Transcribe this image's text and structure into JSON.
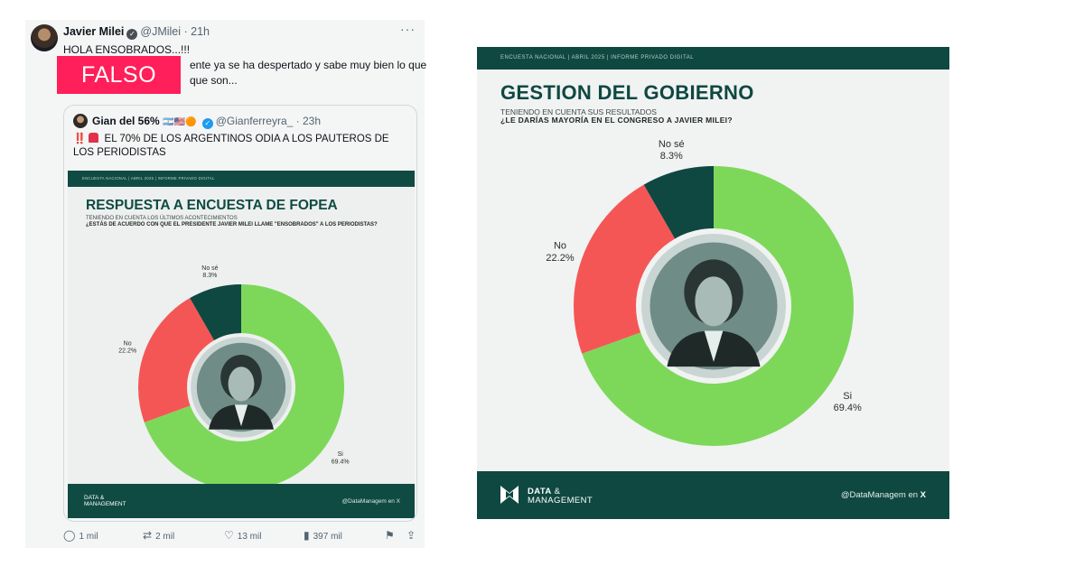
{
  "tweet": {
    "author_name": "Javier Milei",
    "author_handle": "@JMilei",
    "time": "21h",
    "lines": [
      "HOLA ENSOBRADOS...!!!",
      "ente ya se ha despertado y sabe muy bien lo que",
      "que son..."
    ],
    "falso_label": "FALSO",
    "more_icon": "more-dots-icon",
    "quoted": {
      "author_name": "Gian del 56%",
      "author_handle": "@Gianferreyra_",
      "time": "23h",
      "alert_prefix": "‼️",
      "text": "EL 70% DE LOS ARGENTINOS ODIA A LOS PAUTEROS DE LOS PERIODISTAS",
      "card": {
        "band": "ENCUESTA NACIONAL  |  ABRIL 2025  |  INFORME PRIVADO DIGITAL",
        "title": "RESPUESTA A ENCUESTA DE FOPEA",
        "subtitle_line1": "TENIENDO EN CUENTA LOS ÚLTIMOS ACONTECIMIENTOS",
        "subtitle_line2": "¿ESTÁS DE ACUERDO CON QUE EL PRESIDENTE JAVIER MILEI LLAME \"ENSOBRADOS\" A LOS PERIODISTAS?",
        "logo_line1": "DATA &",
        "logo_line2": "MANAGEMENT",
        "handle": "@DataManagem en X"
      }
    },
    "actions": {
      "replies": "1 mil",
      "reposts": "2 mil",
      "likes": "13 mil",
      "views": "397 mil"
    }
  },
  "card": {
    "band": "ENCUESTA NACIONAL  |  ABRIL 2025  |  INFORME PRIVADO DIGITAL",
    "title": "GESTION DEL GOBIERNO",
    "subtitle_line1": "TENIENDO EN CUENTA SUS RESULTADOS",
    "subtitle_line2": "¿LE DARÍAS MAYORÍA EN EL CONGRESO A JAVIER MILEI?",
    "logo_line1": "DATA",
    "logo_amp": "&",
    "logo_line2": "MANAGEMENT",
    "handle_prefix": "@DataManagem en",
    "handle_x": "X"
  },
  "colors": {
    "si": "#7dd85a",
    "no": "#f45656",
    "nose": "#0e4841",
    "band": "#0e4841"
  },
  "chart_data": [
    {
      "type": "pie",
      "title": "RESPUESTA A ENCUESTA DE FOPEA",
      "categories": [
        "Si",
        "No",
        "No sé"
      ],
      "values": [
        69.4,
        22.2,
        8.3
      ],
      "value_labels": [
        "69.4%",
        "22.2%",
        "8.3%"
      ]
    },
    {
      "type": "pie",
      "title": "GESTION DEL GOBIERNO",
      "categories": [
        "Si",
        "No",
        "No sé"
      ],
      "values": [
        69.4,
        22.2,
        8.3
      ],
      "value_labels": [
        "69.4%",
        "22.2%",
        "8.3%"
      ]
    }
  ]
}
